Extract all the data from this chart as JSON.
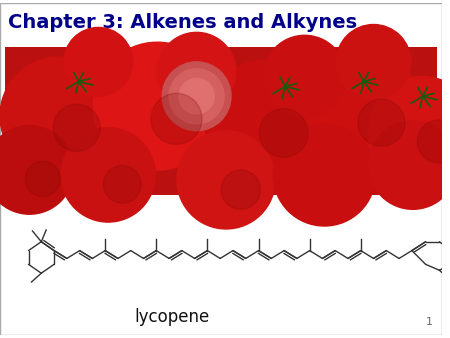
{
  "title": "Chapter 3: Alkenes and Alkynes",
  "title_color": "#00008B",
  "title_fontsize": 14,
  "title_bold": true,
  "label": "lycopene",
  "label_fontsize": 12,
  "page_number": "1",
  "bg_color": "#ffffff",
  "photo_bg": "#CC1111",
  "lc": "#333333",
  "lw": 1.0
}
